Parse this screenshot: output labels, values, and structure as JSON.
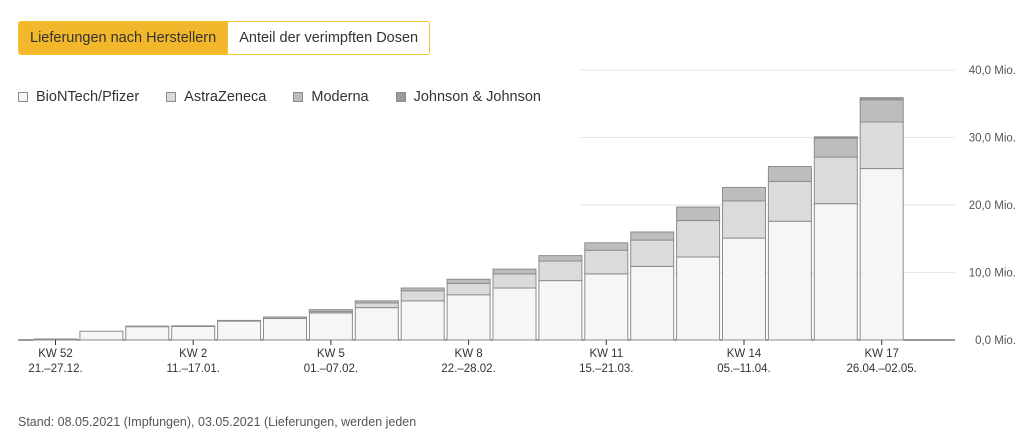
{
  "tabs": [
    {
      "label": "Lieferungen nach Herstellern",
      "active": true
    },
    {
      "label": "Anteil der verimpften Dosen",
      "active": false
    }
  ],
  "footnote": "Stand: 08.05.2021 (Impfungen), 03.05.2021 (Lieferungen, werden jeden",
  "footnote2": "",
  "colors": {
    "biontech": "#f5f6f7",
    "astrazeneca": "#dadcdc",
    "moderna": "#bdbdbd",
    "jj": "#9b9b9b",
    "bar_border": "#8c8c8c",
    "grid": "#e6e6e6",
    "accent": "#f2b72a"
  },
  "chart_data": {
    "type": "bar",
    "stacked": true,
    "categories": [
      "KW 52",
      "KW 53",
      "KW 1",
      "KW 2",
      "KW 3",
      "KW 4",
      "KW 5",
      "KW 6",
      "KW 7",
      "KW 8",
      "KW 9",
      "KW 10",
      "KW 11",
      "KW 12",
      "KW 13",
      "KW 14",
      "KW 15",
      "KW 16",
      "KW 17"
    ],
    "tick_labels": [
      {
        "index": 0,
        "label": "KW 52",
        "dates": "21.–27.12."
      },
      {
        "index": 3,
        "label": "KW 2",
        "dates": "11.–17.01."
      },
      {
        "index": 6,
        "label": "KW 5",
        "dates": "01.–07.02."
      },
      {
        "index": 9,
        "label": "KW 8",
        "dates": "22.–28.02."
      },
      {
        "index": 12,
        "label": "KW 11",
        "dates": "15.–21.03."
      },
      {
        "index": 15,
        "label": "KW 14",
        "dates": "05.–11.04."
      },
      {
        "index": 18,
        "label": "KW 17",
        "dates": "26.04.–02.05."
      }
    ],
    "series": [
      {
        "name": "BioNTech/Pfizer",
        "values": [
          0.15,
          1.3,
          2.0,
          2.0,
          2.8,
          3.2,
          4.0,
          4.8,
          5.8,
          6.7,
          7.7,
          8.8,
          9.8,
          10.9,
          12.3,
          15.1,
          17.6,
          20.2,
          25.4
        ]
      },
      {
        "name": "AstraZeneca",
        "values": [
          0,
          0,
          0,
          0,
          0,
          0,
          0.2,
          0.7,
          1.5,
          1.7,
          2.1,
          2.9,
          3.5,
          3.9,
          5.4,
          5.5,
          5.9,
          6.9,
          6.9
        ]
      },
      {
        "name": "Moderna",
        "values": [
          0,
          0,
          0.05,
          0.1,
          0.1,
          0.2,
          0.3,
          0.3,
          0.4,
          0.6,
          0.7,
          0.8,
          1.1,
          1.2,
          2.0,
          2.0,
          2.2,
          2.8,
          3.3
        ]
      },
      {
        "name": "Johnson & Johnson",
        "values": [
          0,
          0,
          0,
          0,
          0,
          0,
          0,
          0,
          0,
          0,
          0,
          0,
          0,
          0,
          0,
          0,
          0,
          0.2,
          0.3
        ]
      }
    ],
    "y_ticks": [
      {
        "value": 0,
        "label": "0,0 Mio."
      },
      {
        "value": 10,
        "label": "10,0 Mio."
      },
      {
        "value": 20,
        "label": "20,0 Mio."
      },
      {
        "value": 30,
        "label": "30,0 Mio."
      },
      {
        "value": 40,
        "label": "40,0 Mio."
      }
    ],
    "ylim": [
      0,
      40
    ],
    "grid": true,
    "legend_position": "top-left",
    "y_axis_position": "right"
  }
}
